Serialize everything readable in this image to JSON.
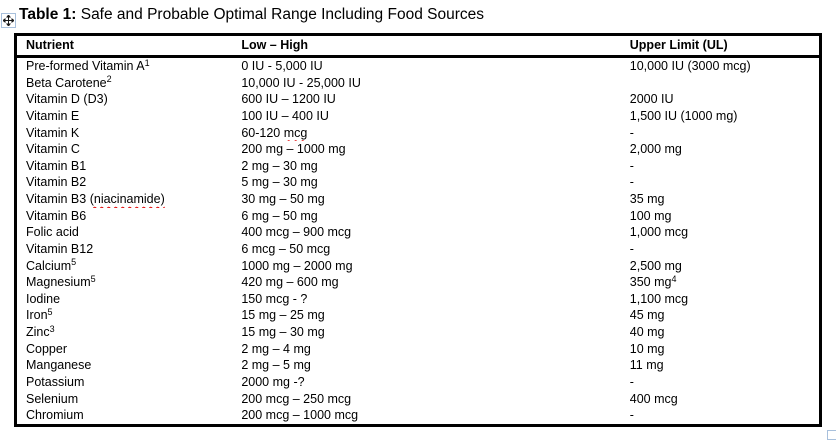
{
  "title": {
    "bold": "Table 1:",
    "rest": " Safe and Probable Optimal Range Including Food Sources"
  },
  "icons": {
    "move_handle": "four-way-move-arrow",
    "resize_handle": "table-resize-square"
  },
  "colors": {
    "background": "#ffffff",
    "text": "#000000",
    "border": "#000000",
    "squiggle": "#e00000",
    "handle_blue": "#a8c0dc"
  },
  "table": {
    "columns": [
      "Nutrient",
      "Low – High",
      "Upper Limit (UL)"
    ],
    "rows": [
      {
        "cells": [
          [
            {
              "t": "Pre-formed Vitamin A"
            },
            {
              "t": "1",
              "style": "sup"
            }
          ],
          [
            {
              "t": "0 IU - 5,000 IU"
            }
          ],
          [
            {
              "t": "10,000 IU (3000 mcg)"
            }
          ]
        ]
      },
      {
        "cells": [
          [
            {
              "t": "Beta Carotene"
            },
            {
              "t": "2",
              "style": "sup"
            }
          ],
          [
            {
              "t": "10,000 IU - 25,000 IU"
            }
          ],
          [
            {
              "t": ""
            }
          ]
        ]
      },
      {
        "cells": [
          [
            {
              "t": "Vitamin D (D3)"
            }
          ],
          [
            {
              "t": "600 IU – 1200 IU"
            }
          ],
          [
            {
              "t": "2000 IU"
            }
          ]
        ]
      },
      {
        "cells": [
          [
            {
              "t": "Vitamin E"
            }
          ],
          [
            {
              "t": "100 IU – 400 IU"
            }
          ],
          [
            {
              "t": "1,500 IU (1000 mg)"
            }
          ]
        ]
      },
      {
        "cells": [
          [
            {
              "t": "Vitamin K"
            }
          ],
          [
            {
              "t": "60-120 "
            },
            {
              "t": "mcg",
              "style": "wavy"
            }
          ],
          [
            {
              "t": "-"
            }
          ]
        ]
      },
      {
        "cells": [
          [
            {
              "t": "Vitamin C"
            }
          ],
          [
            {
              "t": "200 mg – 1000 mg"
            }
          ],
          [
            {
              "t": "2,000 mg"
            }
          ]
        ]
      },
      {
        "cells": [
          [
            {
              "t": "Vitamin B1"
            }
          ],
          [
            {
              "t": "2 mg – 30 mg"
            }
          ],
          [
            {
              "t": "-"
            }
          ]
        ]
      },
      {
        "cells": [
          [
            {
              "t": "Vitamin B2"
            }
          ],
          [
            {
              "t": "5 mg – 30 mg"
            }
          ],
          [
            {
              "t": "-"
            }
          ]
        ]
      },
      {
        "cells": [
          [
            {
              "t": "Vitamin B3 "
            },
            {
              "t": "(niacinamide)",
              "style": "wavy"
            }
          ],
          [
            {
              "t": "30 mg – 50 mg"
            }
          ],
          [
            {
              "t": "35 mg"
            }
          ]
        ]
      },
      {
        "cells": [
          [
            {
              "t": "Vitamin B6"
            }
          ],
          [
            {
              "t": "6 mg – 50 mg"
            }
          ],
          [
            {
              "t": "100 mg"
            }
          ]
        ]
      },
      {
        "cells": [
          [
            {
              "t": "Folic acid"
            }
          ],
          [
            {
              "t": "400 mcg – 900 mcg"
            }
          ],
          [
            {
              "t": "1,000 mcg"
            }
          ]
        ]
      },
      {
        "cells": [
          [
            {
              "t": "Vitamin B12"
            }
          ],
          [
            {
              "t": "6 mcg – 50 mcg"
            }
          ],
          [
            {
              "t": "-"
            }
          ]
        ]
      },
      {
        "cells": [
          [
            {
              "t": "Calcium"
            },
            {
              "t": "5",
              "style": "sup"
            }
          ],
          [
            {
              "t": "1000 mg – 2000 mg"
            }
          ],
          [
            {
              "t": "2,500 mg"
            }
          ]
        ]
      },
      {
        "cells": [
          [
            {
              "t": "Magnesium"
            },
            {
              "t": "5",
              "style": "sup"
            }
          ],
          [
            {
              "t": "420 mg – 600 mg"
            }
          ],
          [
            {
              "t": "350 mg"
            },
            {
              "t": "4",
              "style": "sup"
            }
          ]
        ]
      },
      {
        "cells": [
          [
            {
              "t": "Iodine"
            }
          ],
          [
            {
              "t": "150 mcg - ?"
            }
          ],
          [
            {
              "t": "1,100 mcg"
            }
          ]
        ]
      },
      {
        "cells": [
          [
            {
              "t": "Iron"
            },
            {
              "t": "5",
              "style": "sup"
            }
          ],
          [
            {
              "t": "15 mg – 25 mg"
            }
          ],
          [
            {
              "t": "45 mg"
            }
          ]
        ]
      },
      {
        "cells": [
          [
            {
              "t": "Zinc"
            },
            {
              "t": "3",
              "style": "sup"
            }
          ],
          [
            {
              "t": "15 mg – 30 mg"
            }
          ],
          [
            {
              "t": "40 mg"
            }
          ]
        ]
      },
      {
        "cells": [
          [
            {
              "t": "Copper"
            }
          ],
          [
            {
              "t": "2 mg – 4 mg"
            }
          ],
          [
            {
              "t": "10 mg"
            }
          ]
        ]
      },
      {
        "cells": [
          [
            {
              "t": "Manganese"
            }
          ],
          [
            {
              "t": "2 mg – 5 mg"
            }
          ],
          [
            {
              "t": "11 mg"
            }
          ]
        ]
      },
      {
        "cells": [
          [
            {
              "t": "Potassium"
            }
          ],
          [
            {
              "t": "2000 mg -?"
            }
          ],
          [
            {
              "t": "-"
            }
          ]
        ]
      },
      {
        "cells": [
          [
            {
              "t": "Selenium"
            }
          ],
          [
            {
              "t": "200 mcg – 250 mcg"
            }
          ],
          [
            {
              "t": "400 mcg"
            }
          ]
        ]
      },
      {
        "cells": [
          [
            {
              "t": "Chromium"
            }
          ],
          [
            {
              "t": "200 mcg – 1000 mcg"
            }
          ],
          [
            {
              "t": "-"
            }
          ]
        ]
      }
    ]
  }
}
